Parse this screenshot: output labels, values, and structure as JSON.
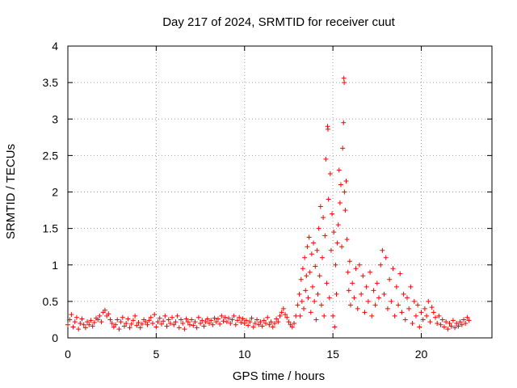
{
  "chart_data": {
    "type": "scatter",
    "title": "Day 217 of 2024, SRMTID for receiver cuut",
    "xlabel": "GPS time / hours",
    "ylabel": "SRMTID / TECUs",
    "xlim": [
      0,
      24
    ],
    "ylim": [
      0,
      4
    ],
    "xticks": [
      0,
      5,
      10,
      15,
      20
    ],
    "yticks": [
      0,
      0.5,
      1,
      1.5,
      2,
      2.5,
      3,
      3.5,
      4
    ],
    "xtick_labels": [
      "0",
      "5",
      "10",
      "15",
      "20"
    ],
    "ytick_labels": [
      "0",
      "0.5",
      "1",
      "1.5",
      "2",
      "2.5",
      "3",
      "3.5",
      "4"
    ],
    "grid": true,
    "marker": "+",
    "color": "#ff0000",
    "series": [
      {
        "name": "SRMTID",
        "points": [
          [
            0.0,
            0.18
          ],
          [
            0.1,
            0.25
          ],
          [
            0.2,
            0.32
          ],
          [
            0.3,
            0.15
          ],
          [
            0.4,
            0.22
          ],
          [
            0.5,
            0.28
          ],
          [
            0.6,
            0.12
          ],
          [
            0.7,
            0.2
          ],
          [
            0.8,
            0.26
          ],
          [
            0.9,
            0.18
          ],
          [
            1.0,
            0.14
          ],
          [
            1.1,
            0.22
          ],
          [
            1.2,
            0.18
          ],
          [
            1.3,
            0.24
          ],
          [
            1.4,
            0.16
          ],
          [
            1.5,
            0.21
          ],
          [
            1.6,
            0.27
          ],
          [
            1.7,
            0.25
          ],
          [
            1.8,
            0.3
          ],
          [
            1.9,
            0.22
          ],
          [
            2.0,
            0.35
          ],
          [
            2.1,
            0.38
          ],
          [
            2.2,
            0.3
          ],
          [
            2.3,
            0.33
          ],
          [
            2.4,
            0.25
          ],
          [
            2.5,
            0.2
          ],
          [
            2.6,
            0.15
          ],
          [
            2.7,
            0.18
          ],
          [
            2.8,
            0.25
          ],
          [
            2.9,
            0.12
          ],
          [
            3.0,
            0.22
          ],
          [
            3.1,
            0.28
          ],
          [
            3.2,
            0.16
          ],
          [
            3.3,
            0.2
          ],
          [
            3.4,
            0.26
          ],
          [
            3.5,
            0.14
          ],
          [
            3.6,
            0.19
          ],
          [
            3.7,
            0.24
          ],
          [
            3.8,
            0.3
          ],
          [
            3.9,
            0.17
          ],
          [
            4.0,
            0.21
          ],
          [
            4.1,
            0.14
          ],
          [
            4.2,
            0.19
          ],
          [
            4.3,
            0.25
          ],
          [
            4.4,
            0.22
          ],
          [
            4.5,
            0.18
          ],
          [
            4.6,
            0.24
          ],
          [
            4.7,
            0.28
          ],
          [
            4.8,
            0.2
          ],
          [
            4.9,
            0.32
          ],
          [
            5.0,
            0.15
          ],
          [
            5.1,
            0.22
          ],
          [
            5.2,
            0.27
          ],
          [
            5.3,
            0.19
          ],
          [
            5.4,
            0.23
          ],
          [
            5.5,
            0.3
          ],
          [
            5.6,
            0.16
          ],
          [
            5.7,
            0.25
          ],
          [
            5.8,
            0.2
          ],
          [
            5.9,
            0.28
          ],
          [
            6.0,
            0.18
          ],
          [
            6.1,
            0.22
          ],
          [
            6.2,
            0.3
          ],
          [
            6.3,
            0.14
          ],
          [
            6.4,
            0.25
          ],
          [
            6.5,
            0.2
          ],
          [
            6.6,
            0.12
          ],
          [
            6.7,
            0.26
          ],
          [
            6.8,
            0.22
          ],
          [
            6.9,
            0.18
          ],
          [
            7.0,
            0.25
          ],
          [
            7.1,
            0.17
          ],
          [
            7.2,
            0.22
          ],
          [
            7.3,
            0.14
          ],
          [
            7.4,
            0.28
          ],
          [
            7.5,
            0.2
          ],
          [
            7.6,
            0.24
          ],
          [
            7.7,
            0.16
          ],
          [
            7.8,
            0.22
          ],
          [
            7.9,
            0.26
          ],
          [
            8.0,
            0.2
          ],
          [
            8.1,
            0.24
          ],
          [
            8.2,
            0.18
          ],
          [
            8.3,
            0.27
          ],
          [
            8.4,
            0.22
          ],
          [
            8.5,
            0.26
          ],
          [
            8.6,
            0.19
          ],
          [
            8.7,
            0.3
          ],
          [
            8.8,
            0.23
          ],
          [
            8.9,
            0.28
          ],
          [
            9.0,
            0.22
          ],
          [
            9.1,
            0.27
          ],
          [
            9.2,
            0.2
          ],
          [
            9.3,
            0.25
          ],
          [
            9.4,
            0.3
          ],
          [
            9.5,
            0.18
          ],
          [
            9.6,
            0.24
          ],
          [
            9.7,
            0.28
          ],
          [
            9.8,
            0.21
          ],
          [
            9.9,
            0.26
          ],
          [
            10.0,
            0.2
          ],
          [
            10.1,
            0.24
          ],
          [
            10.2,
            0.17
          ],
          [
            10.3,
            0.22
          ],
          [
            10.4,
            0.27
          ],
          [
            10.5,
            0.15
          ],
          [
            10.6,
            0.2
          ],
          [
            10.7,
            0.25
          ],
          [
            10.8,
            0.18
          ],
          [
            10.9,
            0.22
          ],
          [
            11.0,
            0.16
          ],
          [
            11.1,
            0.24
          ],
          [
            11.2,
            0.2
          ],
          [
            11.3,
            0.28
          ],
          [
            11.4,
            0.18
          ],
          [
            11.5,
            0.22
          ],
          [
            11.6,
            0.15
          ],
          [
            11.7,
            0.2
          ],
          [
            11.8,
            0.26
          ],
          [
            11.9,
            0.22
          ],
          [
            12.0,
            0.3
          ],
          [
            12.1,
            0.35
          ],
          [
            12.2,
            0.4
          ],
          [
            12.3,
            0.32
          ],
          [
            12.4,
            0.28
          ],
          [
            12.5,
            0.22
          ],
          [
            12.6,
            0.18
          ],
          [
            12.7,
            0.15
          ],
          [
            12.8,
            0.2
          ],
          [
            12.9,
            0.3
          ],
          [
            13.0,
            0.45
          ],
          [
            13.1,
            0.6
          ],
          [
            13.15,
            0.3
          ],
          [
            13.2,
            0.8
          ],
          [
            13.25,
            0.5
          ],
          [
            13.3,
            0.95
          ],
          [
            13.35,
            0.4
          ],
          [
            13.4,
            1.1
          ],
          [
            13.45,
            0.65
          ],
          [
            13.5,
            0.85
          ],
          [
            13.55,
            1.25
          ],
          [
            13.6,
            0.55
          ],
          [
            13.65,
            1.38
          ],
          [
            13.7,
            0.9
          ],
          [
            13.75,
            0.35
          ],
          [
            13.8,
            1.15
          ],
          [
            13.85,
            0.7
          ],
          [
            13.9,
            1.3
          ],
          [
            13.95,
            0.5
          ],
          [
            14.0,
            0.98
          ],
          [
            14.05,
            0.25
          ],
          [
            14.1,
            1.2
          ],
          [
            14.15,
            0.6
          ],
          [
            14.2,
            1.5
          ],
          [
            14.25,
            0.85
          ],
          [
            14.3,
            1.8
          ],
          [
            14.35,
            0.45
          ],
          [
            14.4,
            1.1
          ],
          [
            14.45,
            1.65
          ],
          [
            14.5,
            0.3
          ],
          [
            14.55,
            1.4
          ],
          [
            14.6,
            2.45
          ],
          [
            14.65,
            0.75
          ],
          [
            14.7,
            2.9
          ],
          [
            14.72,
            2.86
          ],
          [
            14.75,
            1.9
          ],
          [
            14.8,
            0.55
          ],
          [
            14.85,
            2.25
          ],
          [
            14.9,
            1.2
          ],
          [
            14.95,
            1.7
          ],
          [
            15.0,
            0.3
          ],
          [
            15.05,
            1.45
          ],
          [
            15.1,
            0.15
          ],
          [
            15.15,
            1.0
          ],
          [
            15.2,
            0.6
          ],
          [
            15.25,
            1.3
          ],
          [
            15.3,
            1.55
          ],
          [
            15.35,
            2.3
          ],
          [
            15.4,
            1.85
          ],
          [
            15.45,
            2.1
          ],
          [
            15.5,
            1.25
          ],
          [
            15.55,
            2.6
          ],
          [
            15.6,
            2.95
          ],
          [
            15.62,
            3.56
          ],
          [
            15.64,
            3.5
          ],
          [
            15.65,
            2.0
          ],
          [
            15.7,
            1.75
          ],
          [
            15.75,
            2.15
          ],
          [
            15.8,
            1.35
          ],
          [
            15.85,
            0.9
          ],
          [
            15.9,
            0.65
          ],
          [
            15.95,
            1.05
          ],
          [
            16.0,
            0.45
          ],
          [
            16.1,
            0.75
          ],
          [
            16.2,
            0.55
          ],
          [
            16.3,
            0.95
          ],
          [
            16.4,
            0.4
          ],
          [
            16.5,
            1.0
          ],
          [
            16.6,
            0.6
          ],
          [
            16.7,
            0.85
          ],
          [
            16.8,
            0.35
          ],
          [
            16.9,
            0.7
          ],
          [
            17.0,
            0.5
          ],
          [
            17.1,
            0.9
          ],
          [
            17.2,
            0.3
          ],
          [
            17.3,
            0.65
          ],
          [
            17.4,
            0.45
          ],
          [
            17.5,
            0.75
          ],
          [
            17.6,
            0.55
          ],
          [
            17.7,
            1.0
          ],
          [
            17.8,
            1.2
          ],
          [
            17.9,
            0.6
          ],
          [
            18.0,
            1.1
          ],
          [
            18.1,
            0.4
          ],
          [
            18.2,
            0.8
          ],
          [
            18.3,
            0.5
          ],
          [
            18.4,
            0.95
          ],
          [
            18.5,
            0.3
          ],
          [
            18.6,
            0.7
          ],
          [
            18.7,
            0.45
          ],
          [
            18.8,
            0.88
          ],
          [
            18.9,
            0.35
          ],
          [
            19.0,
            0.6
          ],
          [
            19.1,
            0.25
          ],
          [
            19.2,
            0.55
          ],
          [
            19.3,
            0.4
          ],
          [
            19.4,
            0.7
          ],
          [
            19.5,
            0.2
          ],
          [
            19.6,
            0.5
          ],
          [
            19.7,
            0.3
          ],
          [
            19.8,
            0.45
          ],
          [
            19.9,
            0.15
          ],
          [
            20.0,
            0.35
          ],
          [
            20.1,
            0.25
          ],
          [
            20.2,
            0.4
          ],
          [
            20.3,
            0.3
          ],
          [
            20.4,
            0.5
          ],
          [
            20.5,
            0.22
          ],
          [
            20.6,
            0.42
          ],
          [
            20.7,
            0.35
          ],
          [
            20.8,
            0.28
          ],
          [
            20.9,
            0.2
          ],
          [
            21.0,
            0.3
          ],
          [
            21.1,
            0.18
          ],
          [
            21.2,
            0.25
          ],
          [
            21.3,
            0.15
          ],
          [
            21.4,
            0.22
          ],
          [
            21.5,
            0.12
          ],
          [
            21.6,
            0.2
          ],
          [
            21.7,
            0.16
          ],
          [
            21.8,
            0.24
          ],
          [
            21.9,
            0.14
          ],
          [
            22.0,
            0.2
          ],
          [
            22.1,
            0.16
          ],
          [
            22.2,
            0.22
          ],
          [
            22.3,
            0.18
          ],
          [
            22.4,
            0.25
          ],
          [
            22.5,
            0.2
          ],
          [
            22.6,
            0.28
          ],
          [
            22.7,
            0.24
          ]
        ]
      }
    ]
  }
}
